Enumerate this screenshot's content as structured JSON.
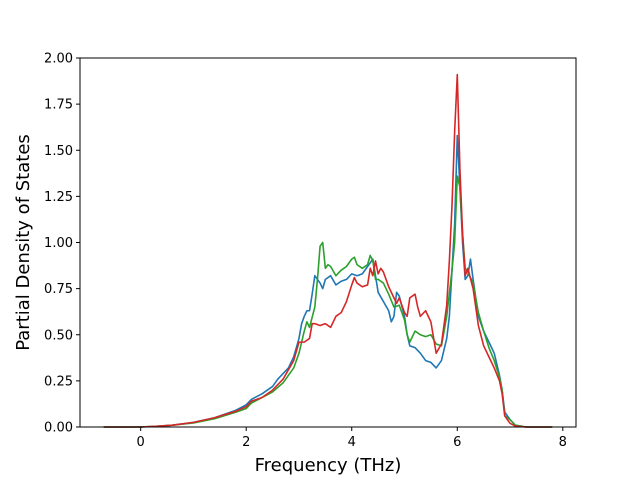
{
  "chart_data": {
    "type": "line",
    "title": "",
    "xlabel": "Frequency (THz)",
    "ylabel": "Partial Density of States",
    "xlim": [
      -1.15,
      8.25
    ],
    "ylim": [
      0.0,
      2.0
    ],
    "xticks": [
      0,
      2,
      4,
      6,
      8
    ],
    "yticks": [
      0.0,
      0.25,
      0.5,
      0.75,
      1.0,
      1.25,
      1.5,
      1.75,
      2.0
    ],
    "xtick_labels": [
      "0",
      "2",
      "4",
      "6",
      "8"
    ],
    "ytick_labels": [
      "0.00",
      "0.25",
      "0.50",
      "0.75",
      "1.00",
      "1.25",
      "1.50",
      "1.75",
      "2.00"
    ],
    "grid": false,
    "legend": "none",
    "series": [
      {
        "color": "#1f77b4",
        "points": [
          [
            -0.7,
            0
          ],
          [
            -0.2,
            0
          ],
          [
            0,
            0
          ],
          [
            0.3,
            0.004
          ],
          [
            0.6,
            0.01
          ],
          [
            1.0,
            0.025
          ],
          [
            1.4,
            0.05
          ],
          [
            1.8,
            0.09
          ],
          [
            2.0,
            0.12
          ],
          [
            2.1,
            0.15
          ],
          [
            2.3,
            0.18
          ],
          [
            2.5,
            0.22
          ],
          [
            2.6,
            0.26
          ],
          [
            2.8,
            0.32
          ],
          [
            2.9,
            0.38
          ],
          [
            3.0,
            0.48
          ],
          [
            3.05,
            0.56
          ],
          [
            3.1,
            0.6
          ],
          [
            3.15,
            0.63
          ],
          [
            3.2,
            0.63
          ],
          [
            3.25,
            0.72
          ],
          [
            3.3,
            0.82
          ],
          [
            3.4,
            0.78
          ],
          [
            3.45,
            0.75
          ],
          [
            3.5,
            0.8
          ],
          [
            3.6,
            0.82
          ],
          [
            3.7,
            0.77
          ],
          [
            3.8,
            0.79
          ],
          [
            3.9,
            0.8
          ],
          [
            4.0,
            0.83
          ],
          [
            4.1,
            0.82
          ],
          [
            4.2,
            0.83
          ],
          [
            4.3,
            0.87
          ],
          [
            4.4,
            0.91
          ],
          [
            4.45,
            0.82
          ],
          [
            4.5,
            0.73
          ],
          [
            4.6,
            0.68
          ],
          [
            4.7,
            0.63
          ],
          [
            4.75,
            0.57
          ],
          [
            4.8,
            0.6
          ],
          [
            4.85,
            0.73
          ],
          [
            4.9,
            0.71
          ],
          [
            5.0,
            0.6
          ],
          [
            5.05,
            0.5
          ],
          [
            5.1,
            0.44
          ],
          [
            5.2,
            0.43
          ],
          [
            5.3,
            0.4
          ],
          [
            5.4,
            0.36
          ],
          [
            5.5,
            0.35
          ],
          [
            5.6,
            0.32
          ],
          [
            5.7,
            0.36
          ],
          [
            5.8,
            0.48
          ],
          [
            5.85,
            0.6
          ],
          [
            5.9,
            0.85
          ],
          [
            5.95,
            1.1
          ],
          [
            6.0,
            1.58
          ],
          [
            6.05,
            1.3
          ],
          [
            6.1,
            1.0
          ],
          [
            6.15,
            0.8
          ],
          [
            6.2,
            0.82
          ],
          [
            6.25,
            0.91
          ],
          [
            6.3,
            0.8
          ],
          [
            6.4,
            0.6
          ],
          [
            6.5,
            0.52
          ],
          [
            6.6,
            0.46
          ],
          [
            6.7,
            0.4
          ],
          [
            6.8,
            0.28
          ],
          [
            6.85,
            0.2
          ],
          [
            6.9,
            0.08
          ],
          [
            7.0,
            0.04
          ],
          [
            7.1,
            0.01
          ],
          [
            7.3,
            0
          ],
          [
            7.8,
            0
          ]
        ]
      },
      {
        "color": "#2ca02c",
        "points": [
          [
            -0.7,
            0
          ],
          [
            -0.2,
            0
          ],
          [
            0,
            0
          ],
          [
            0.3,
            0.004
          ],
          [
            0.6,
            0.01
          ],
          [
            1.0,
            0.022
          ],
          [
            1.4,
            0.045
          ],
          [
            1.8,
            0.08
          ],
          [
            2.0,
            0.1
          ],
          [
            2.1,
            0.13
          ],
          [
            2.3,
            0.16
          ],
          [
            2.5,
            0.19
          ],
          [
            2.7,
            0.24
          ],
          [
            2.9,
            0.32
          ],
          [
            3.0,
            0.4
          ],
          [
            3.1,
            0.52
          ],
          [
            3.15,
            0.57
          ],
          [
            3.2,
            0.54
          ],
          [
            3.3,
            0.65
          ],
          [
            3.35,
            0.8
          ],
          [
            3.4,
            0.98
          ],
          [
            3.45,
            1.0
          ],
          [
            3.5,
            0.86
          ],
          [
            3.55,
            0.88
          ],
          [
            3.6,
            0.87
          ],
          [
            3.7,
            0.82
          ],
          [
            3.8,
            0.85
          ],
          [
            3.9,
            0.87
          ],
          [
            4.0,
            0.91
          ],
          [
            4.05,
            0.92
          ],
          [
            4.1,
            0.88
          ],
          [
            4.2,
            0.86
          ],
          [
            4.3,
            0.88
          ],
          [
            4.35,
            0.93
          ],
          [
            4.4,
            0.9
          ],
          [
            4.45,
            0.8
          ],
          [
            4.5,
            0.8
          ],
          [
            4.6,
            0.78
          ],
          [
            4.7,
            0.72
          ],
          [
            4.8,
            0.65
          ],
          [
            4.9,
            0.66
          ],
          [
            5.0,
            0.58
          ],
          [
            5.05,
            0.5
          ],
          [
            5.1,
            0.46
          ],
          [
            5.2,
            0.52
          ],
          [
            5.3,
            0.5
          ],
          [
            5.4,
            0.49
          ],
          [
            5.5,
            0.5
          ],
          [
            5.6,
            0.45
          ],
          [
            5.7,
            0.44
          ],
          [
            5.8,
            0.6
          ],
          [
            5.9,
            0.85
          ],
          [
            5.95,
            1.0
          ],
          [
            6.0,
            1.36
          ],
          [
            6.05,
            1.3
          ],
          [
            6.1,
            1.05
          ],
          [
            6.15,
            0.86
          ],
          [
            6.2,
            0.84
          ],
          [
            6.3,
            0.78
          ],
          [
            6.4,
            0.62
          ],
          [
            6.5,
            0.52
          ],
          [
            6.6,
            0.43
          ],
          [
            6.7,
            0.36
          ],
          [
            6.8,
            0.27
          ],
          [
            6.85,
            0.2
          ],
          [
            6.9,
            0.06
          ],
          [
            7.0,
            0.04
          ],
          [
            7.1,
            0.01
          ],
          [
            7.3,
            0
          ],
          [
            7.8,
            0
          ]
        ]
      },
      {
        "color": "#d62728",
        "points": [
          [
            -0.7,
            0
          ],
          [
            -0.2,
            0
          ],
          [
            0,
            0
          ],
          [
            0.3,
            0.004
          ],
          [
            0.6,
            0.01
          ],
          [
            1.0,
            0.025
          ],
          [
            1.4,
            0.05
          ],
          [
            1.8,
            0.085
          ],
          [
            2.0,
            0.11
          ],
          [
            2.1,
            0.14
          ],
          [
            2.3,
            0.16
          ],
          [
            2.5,
            0.2
          ],
          [
            2.7,
            0.26
          ],
          [
            2.9,
            0.36
          ],
          [
            3.0,
            0.46
          ],
          [
            3.1,
            0.46
          ],
          [
            3.2,
            0.48
          ],
          [
            3.25,
            0.56
          ],
          [
            3.3,
            0.56
          ],
          [
            3.4,
            0.55
          ],
          [
            3.5,
            0.56
          ],
          [
            3.6,
            0.54
          ],
          [
            3.7,
            0.6
          ],
          [
            3.8,
            0.62
          ],
          [
            3.9,
            0.68
          ],
          [
            4.0,
            0.77
          ],
          [
            4.05,
            0.81
          ],
          [
            4.1,
            0.78
          ],
          [
            4.2,
            0.76
          ],
          [
            4.3,
            0.77
          ],
          [
            4.35,
            0.86
          ],
          [
            4.4,
            0.82
          ],
          [
            4.45,
            0.9
          ],
          [
            4.5,
            0.83
          ],
          [
            4.55,
            0.86
          ],
          [
            4.6,
            0.84
          ],
          [
            4.7,
            0.76
          ],
          [
            4.8,
            0.7
          ],
          [
            4.85,
            0.67
          ],
          [
            4.9,
            0.7
          ],
          [
            5.0,
            0.62
          ],
          [
            5.05,
            0.6
          ],
          [
            5.1,
            0.7
          ],
          [
            5.2,
            0.72
          ],
          [
            5.25,
            0.65
          ],
          [
            5.3,
            0.6
          ],
          [
            5.4,
            0.63
          ],
          [
            5.5,
            0.57
          ],
          [
            5.6,
            0.4
          ],
          [
            5.7,
            0.45
          ],
          [
            5.8,
            0.66
          ],
          [
            5.85,
            0.9
          ],
          [
            5.9,
            1.2
          ],
          [
            5.95,
            1.6
          ],
          [
            6.0,
            1.91
          ],
          [
            6.05,
            1.4
          ],
          [
            6.1,
            1.05
          ],
          [
            6.15,
            0.82
          ],
          [
            6.2,
            0.86
          ],
          [
            6.3,
            0.75
          ],
          [
            6.4,
            0.55
          ],
          [
            6.5,
            0.44
          ],
          [
            6.6,
            0.38
          ],
          [
            6.7,
            0.32
          ],
          [
            6.8,
            0.25
          ],
          [
            6.85,
            0.18
          ],
          [
            6.9,
            0.06
          ],
          [
            7.0,
            0.02
          ],
          [
            7.1,
            0.005
          ],
          [
            7.3,
            0
          ],
          [
            7.8,
            0
          ]
        ]
      }
    ]
  }
}
